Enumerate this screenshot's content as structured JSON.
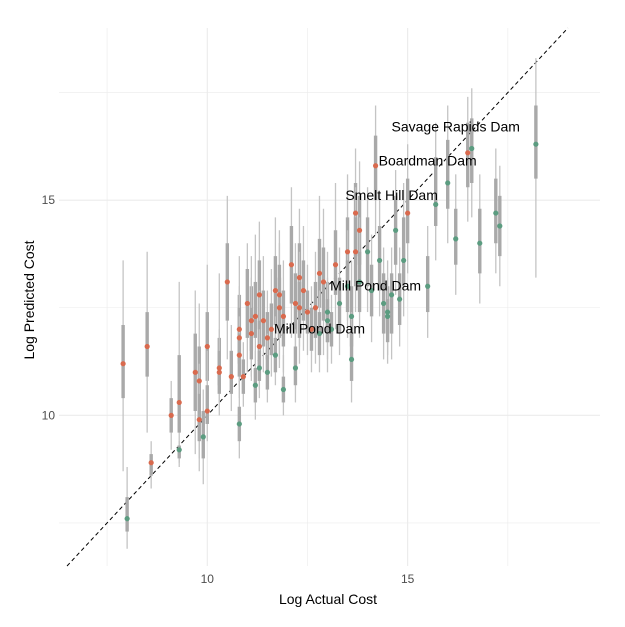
{
  "chart_data": {
    "type": "scatter",
    "title": "",
    "xlabel": "Log Actual Cost",
    "ylabel": "Log Predicted Cost",
    "xlim": [
      6.3,
      19.8
    ],
    "ylim": [
      6.5,
      19.0
    ],
    "x_ticks": [
      10,
      15
    ],
    "y_ticks": [
      10,
      15
    ],
    "grid": true,
    "legend": "none",
    "reference_line": {
      "style": "dashed",
      "slope": 1,
      "intercept": 0,
      "color": "#000000"
    },
    "colors": {
      "over_predicted": "#d96a4e",
      "under_predicted": "#5b9c80",
      "interval_outer": "#c4c4c4",
      "interval_inner": "#a9a9a9",
      "grid": "#ebebeb"
    },
    "annotations": [
      {
        "label": "Savage Rapids Dam",
        "x": 16.2,
        "y": 16.6
      },
      {
        "label": "Boardman Dam",
        "x": 15.5,
        "y": 15.8
      },
      {
        "label": "Smelt Hill Dam",
        "x": 14.6,
        "y": 15.0
      },
      {
        "label": "Mill Pond Dam",
        "x": 14.2,
        "y": 12.9
      },
      {
        "label": "Mill Pond Dam",
        "x": 12.8,
        "y": 11.9
      }
    ],
    "points": [
      {
        "x": 7.9,
        "y": 11.2,
        "g": "over",
        "lo": 8.7,
        "hi": 13.6,
        "ilo": 10.4,
        "ihi": 12.1
      },
      {
        "x": 8.0,
        "y": 7.6,
        "g": "under",
        "lo": 6.9,
        "hi": 8.8,
        "ilo": 7.3,
        "ihi": 8.1
      },
      {
        "x": 8.5,
        "y": 11.6,
        "g": "over",
        "lo": 9.6,
        "hi": 13.8,
        "ilo": 10.9,
        "ihi": 12.4
      },
      {
        "x": 8.6,
        "y": 8.9,
        "g": "over",
        "lo": 8.3,
        "hi": 9.4,
        "ilo": 8.6,
        "ihi": 9.1
      },
      {
        "x": 9.1,
        "y": 10.0,
        "g": "over",
        "lo": 9.2,
        "hi": 10.8,
        "ilo": 9.6,
        "ihi": 10.4
      },
      {
        "x": 9.3,
        "y": 10.3,
        "g": "over",
        "lo": 8.8,
        "hi": 13.1,
        "ilo": 9.6,
        "ihi": 11.4
      },
      {
        "x": 9.3,
        "y": 9.2,
        "g": "under",
        "lo": 8.9,
        "hi": 9.4,
        "ilo": 9.0,
        "ihi": 9.3
      },
      {
        "x": 9.7,
        "y": 11.0,
        "g": "over",
        "lo": 9.1,
        "hi": 12.9,
        "ilo": 10.1,
        "ihi": 11.9
      },
      {
        "x": 9.8,
        "y": 10.8,
        "g": "over",
        "lo": 8.7,
        "hi": 12.6,
        "ilo": 9.8,
        "ihi": 11.6
      },
      {
        "x": 9.8,
        "y": 9.9,
        "g": "over",
        "lo": 9.0,
        "hi": 11.2,
        "ilo": 9.4,
        "ihi": 10.5
      },
      {
        "x": 9.9,
        "y": 9.5,
        "g": "under",
        "lo": 8.4,
        "hi": 10.6,
        "ilo": 9.0,
        "ihi": 10.1
      },
      {
        "x": 10.0,
        "y": 11.6,
        "g": "over",
        "lo": 10.0,
        "hi": 13.5,
        "ilo": 10.8,
        "ihi": 12.4
      },
      {
        "x": 10.0,
        "y": 10.1,
        "g": "over",
        "lo": 9.4,
        "hi": 11.5,
        "ilo": 9.8,
        "ihi": 10.7
      },
      {
        "x": 10.3,
        "y": 11.1,
        "g": "over",
        "lo": 10.3,
        "hi": 13.3,
        "ilo": 10.7,
        "ihi": 11.8
      },
      {
        "x": 10.3,
        "y": 11.0,
        "g": "over",
        "lo": 10.0,
        "hi": 12.0,
        "ilo": 10.5,
        "ihi": 11.5
      },
      {
        "x": 10.5,
        "y": 13.1,
        "g": "over",
        "lo": 11.3,
        "hi": 15.1,
        "ilo": 12.2,
        "ihi": 14.0
      },
      {
        "x": 10.6,
        "y": 10.9,
        "g": "over",
        "lo": 10.1,
        "hi": 12.1,
        "ilo": 10.5,
        "ihi": 11.5
      },
      {
        "x": 10.8,
        "y": 12.0,
        "g": "over",
        "lo": 10.6,
        "hi": 13.7,
        "ilo": 11.3,
        "ihi": 12.8
      },
      {
        "x": 10.8,
        "y": 11.8,
        "g": "over",
        "lo": 10.7,
        "hi": 13.0,
        "ilo": 11.2,
        "ihi": 12.5
      },
      {
        "x": 10.8,
        "y": 11.4,
        "g": "over",
        "lo": 10.4,
        "hi": 12.3,
        "ilo": 10.9,
        "ihi": 11.9
      },
      {
        "x": 10.8,
        "y": 9.8,
        "g": "under",
        "lo": 9.0,
        "hi": 10.6,
        "ilo": 9.4,
        "ihi": 10.2
      },
      {
        "x": 10.9,
        "y": 10.9,
        "g": "over",
        "lo": 10.2,
        "hi": 11.7,
        "ilo": 10.5,
        "ihi": 11.3
      },
      {
        "x": 11.0,
        "y": 12.6,
        "g": "over",
        "lo": 11.0,
        "hi": 14.0,
        "ilo": 11.8,
        "ihi": 13.4
      },
      {
        "x": 11.1,
        "y": 12.2,
        "g": "over",
        "lo": 10.8,
        "hi": 13.7,
        "ilo": 11.5,
        "ihi": 13.0
      },
      {
        "x": 11.1,
        "y": 11.9,
        "g": "over",
        "lo": 10.9,
        "hi": 13.2,
        "ilo": 11.3,
        "ihi": 12.5
      },
      {
        "x": 11.2,
        "y": 12.3,
        "g": "over",
        "lo": 11.1,
        "hi": 14.2,
        "ilo": 11.8,
        "ihi": 13.1
      },
      {
        "x": 11.2,
        "y": 10.7,
        "g": "under",
        "lo": 9.9,
        "hi": 11.5,
        "ilo": 10.3,
        "ihi": 11.1
      },
      {
        "x": 11.3,
        "y": 12.8,
        "g": "over",
        "lo": 11.2,
        "hi": 14.5,
        "ilo": 12.0,
        "ihi": 13.6
      },
      {
        "x": 11.3,
        "y": 11.6,
        "g": "over",
        "lo": 10.6,
        "hi": 12.9,
        "ilo": 11.1,
        "ihi": 12.2
      },
      {
        "x": 11.3,
        "y": 11.1,
        "g": "under",
        "lo": 10.4,
        "hi": 12.0,
        "ilo": 10.8,
        "ihi": 11.5
      },
      {
        "x": 11.4,
        "y": 12.2,
        "g": "over",
        "lo": 11.0,
        "hi": 13.7,
        "ilo": 11.6,
        "ihi": 12.9
      },
      {
        "x": 11.5,
        "y": 11.8,
        "g": "over",
        "lo": 10.9,
        "hi": 12.9,
        "ilo": 11.3,
        "ihi": 12.4
      },
      {
        "x": 11.5,
        "y": 11.0,
        "g": "under",
        "lo": 10.3,
        "hi": 11.9,
        "ilo": 10.6,
        "ihi": 11.4
      },
      {
        "x": 11.6,
        "y": 12.0,
        "g": "over",
        "lo": 10.9,
        "hi": 13.4,
        "ilo": 11.4,
        "ihi": 12.6
      },
      {
        "x": 11.7,
        "y": 12.9,
        "g": "over",
        "lo": 11.4,
        "hi": 14.6,
        "ilo": 12.1,
        "ihi": 13.7
      },
      {
        "x": 11.7,
        "y": 11.4,
        "g": "under",
        "lo": 10.7,
        "hi": 12.3,
        "ilo": 11.0,
        "ihi": 11.8
      },
      {
        "x": 11.8,
        "y": 12.5,
        "g": "over",
        "lo": 11.1,
        "hi": 14.0,
        "ilo": 11.8,
        "ihi": 13.2
      },
      {
        "x": 11.8,
        "y": 12.8,
        "g": "over",
        "lo": 11.3,
        "hi": 14.3,
        "ilo": 12.0,
        "ihi": 13.5
      },
      {
        "x": 11.9,
        "y": 12.3,
        "g": "over",
        "lo": 11.0,
        "hi": 13.6,
        "ilo": 11.6,
        "ihi": 12.9
      },
      {
        "x": 11.9,
        "y": 10.6,
        "g": "under",
        "lo": 10.0,
        "hi": 11.4,
        "ilo": 10.3,
        "ihi": 10.9
      },
      {
        "x": 12.1,
        "y": 13.5,
        "g": "over",
        "lo": 11.8,
        "hi": 15.3,
        "ilo": 12.6,
        "ihi": 14.4
      },
      {
        "x": 12.2,
        "y": 12.6,
        "g": "over",
        "lo": 11.3,
        "hi": 14.0,
        "ilo": 11.9,
        "ihi": 13.3
      },
      {
        "x": 12.2,
        "y": 11.1,
        "g": "under",
        "lo": 10.3,
        "hi": 12.0,
        "ilo": 10.7,
        "ihi": 11.6
      },
      {
        "x": 12.3,
        "y": 13.2,
        "g": "over",
        "lo": 11.6,
        "hi": 14.8,
        "ilo": 12.4,
        "ihi": 14.0
      },
      {
        "x": 12.3,
        "y": 12.5,
        "g": "over",
        "lo": 11.2,
        "hi": 13.8,
        "ilo": 11.8,
        "ihi": 13.1
      },
      {
        "x": 12.4,
        "y": 12.9,
        "g": "over",
        "lo": 11.5,
        "hi": 14.4,
        "ilo": 12.2,
        "ihi": 13.6
      },
      {
        "x": 12.5,
        "y": 12.4,
        "g": "over",
        "lo": 11.4,
        "hi": 13.5,
        "ilo": 11.9,
        "ihi": 12.9
      },
      {
        "x": 12.6,
        "y": 12.0,
        "g": "over",
        "lo": 11.0,
        "hi": 13.0,
        "ilo": 11.5,
        "ihi": 12.5
      },
      {
        "x": 12.7,
        "y": 12.5,
        "g": "over",
        "lo": 11.2,
        "hi": 13.8,
        "ilo": 11.8,
        "ihi": 13.1
      },
      {
        "x": 12.8,
        "y": 13.3,
        "g": "over",
        "lo": 11.8,
        "hi": 15.1,
        "ilo": 12.5,
        "ihi": 14.1
      },
      {
        "x": 12.8,
        "y": 11.9,
        "g": "under",
        "lo": 11.0,
        "hi": 12.9,
        "ilo": 11.4,
        "ihi": 12.4
      },
      {
        "x": 12.9,
        "y": 13.1,
        "g": "over",
        "lo": 11.4,
        "hi": 14.8,
        "ilo": 12.2,
        "ihi": 13.9
      },
      {
        "x": 13.0,
        "y": 12.4,
        "g": "under",
        "lo": 11.0,
        "hi": 13.8,
        "ilo": 11.7,
        "ihi": 13.1
      },
      {
        "x": 13.0,
        "y": 12.2,
        "g": "under",
        "lo": 11.3,
        "hi": 13.2,
        "ilo": 11.7,
        "ihi": 12.7
      },
      {
        "x": 13.1,
        "y": 12.0,
        "g": "under",
        "lo": 11.2,
        "hi": 12.8,
        "ilo": 11.6,
        "ihi": 12.4
      },
      {
        "x": 13.2,
        "y": 13.5,
        "g": "over",
        "lo": 12.0,
        "hi": 15.4,
        "ilo": 12.8,
        "ihi": 14.3
      },
      {
        "x": 13.3,
        "y": 12.6,
        "g": "under",
        "lo": 11.4,
        "hi": 13.9,
        "ilo": 11.9,
        "ihi": 13.2
      },
      {
        "x": 13.5,
        "y": 13.8,
        "g": "over",
        "lo": 12.2,
        "hi": 15.6,
        "ilo": 13.0,
        "ihi": 14.6
      },
      {
        "x": 13.5,
        "y": 13.0,
        "g": "under",
        "lo": 11.8,
        "hi": 14.3,
        "ilo": 12.4,
        "ihi": 13.6
      },
      {
        "x": 13.6,
        "y": 12.3,
        "g": "under",
        "lo": 11.0,
        "hi": 13.6,
        "ilo": 11.6,
        "ihi": 13.0
      },
      {
        "x": 13.6,
        "y": 11.3,
        "g": "under",
        "lo": 10.3,
        "hi": 12.4,
        "ilo": 10.8,
        "ihi": 11.9
      },
      {
        "x": 13.7,
        "y": 14.7,
        "g": "over",
        "lo": 12.9,
        "hi": 16.2,
        "ilo": 13.7,
        "ihi": 15.4
      },
      {
        "x": 13.7,
        "y": 13.8,
        "g": "over",
        "lo": 12.4,
        "hi": 15.3,
        "ilo": 13.0,
        "ihi": 14.6
      },
      {
        "x": 13.8,
        "y": 14.3,
        "g": "over",
        "lo": 12.8,
        "hi": 15.9,
        "ilo": 13.5,
        "ihi": 15.1
      },
      {
        "x": 13.8,
        "y": 13.1,
        "g": "under",
        "lo": 11.8,
        "hi": 14.6,
        "ilo": 12.4,
        "ihi": 13.8
      },
      {
        "x": 14.0,
        "y": 13.8,
        "g": "under",
        "lo": 12.4,
        "hi": 15.3,
        "ilo": 13.0,
        "ihi": 14.6
      },
      {
        "x": 14.1,
        "y": 12.9,
        "g": "under",
        "lo": 11.7,
        "hi": 14.2,
        "ilo": 12.3,
        "ihi": 13.5
      },
      {
        "x": 14.2,
        "y": 15.8,
        "g": "over",
        "lo": 14.2,
        "hi": 17.2,
        "ilo": 15.0,
        "ihi": 16.5
      },
      {
        "x": 14.3,
        "y": 13.6,
        "g": "under",
        "lo": 12.3,
        "hi": 15.2,
        "ilo": 12.9,
        "ihi": 14.4
      },
      {
        "x": 14.4,
        "y": 12.6,
        "g": "under",
        "lo": 11.3,
        "hi": 13.9,
        "ilo": 11.9,
        "ihi": 13.3
      },
      {
        "x": 14.5,
        "y": 12.4,
        "g": "under",
        "lo": 11.4,
        "hi": 13.6,
        "ilo": 11.9,
        "ihi": 13.0
      },
      {
        "x": 14.5,
        "y": 12.3,
        "g": "under",
        "lo": 11.2,
        "hi": 13.2,
        "ilo": 11.7,
        "ihi": 12.7
      },
      {
        "x": 14.6,
        "y": 12.8,
        "g": "under",
        "lo": 11.3,
        "hi": 13.9,
        "ilo": 11.9,
        "ihi": 13.3
      },
      {
        "x": 14.7,
        "y": 14.3,
        "g": "under",
        "lo": 12.8,
        "hi": 15.7,
        "ilo": 13.5,
        "ihi": 15.1
      },
      {
        "x": 14.8,
        "y": 12.7,
        "g": "under",
        "lo": 11.6,
        "hi": 13.9,
        "ilo": 12.1,
        "ihi": 13.3
      },
      {
        "x": 14.9,
        "y": 13.6,
        "g": "under",
        "lo": 12.3,
        "hi": 15.4,
        "ilo": 13.0,
        "ihi": 14.6
      },
      {
        "x": 15.0,
        "y": 14.7,
        "g": "over",
        "lo": 13.3,
        "hi": 16.3,
        "ilo": 14.0,
        "ihi": 15.5
      },
      {
        "x": 15.5,
        "y": 13.0,
        "g": "under",
        "lo": 11.8,
        "hi": 14.4,
        "ilo": 12.4,
        "ihi": 13.7
      },
      {
        "x": 15.7,
        "y": 14.9,
        "g": "under",
        "lo": 13.6,
        "hi": 16.8,
        "ilo": 14.4,
        "ihi": 16.0
      },
      {
        "x": 16.0,
        "y": 15.4,
        "g": "under",
        "lo": 14.0,
        "hi": 17.2,
        "ilo": 14.8,
        "ihi": 16.4
      },
      {
        "x": 16.2,
        "y": 14.1,
        "g": "under",
        "lo": 12.8,
        "hi": 15.6,
        "ilo": 13.5,
        "ihi": 14.8
      },
      {
        "x": 16.5,
        "y": 16.1,
        "g": "over",
        "lo": 14.5,
        "hi": 17.4,
        "ilo": 15.3,
        "ihi": 16.8
      },
      {
        "x": 16.6,
        "y": 16.2,
        "g": "under",
        "lo": 14.6,
        "hi": 17.6,
        "ilo": 15.4,
        "ihi": 16.9
      },
      {
        "x": 16.8,
        "y": 14.0,
        "g": "under",
        "lo": 12.6,
        "hi": 15.6,
        "ilo": 13.3,
        "ihi": 14.8
      },
      {
        "x": 17.2,
        "y": 14.7,
        "g": "under",
        "lo": 13.3,
        "hi": 16.2,
        "ilo": 14.0,
        "ihi": 15.5
      },
      {
        "x": 17.3,
        "y": 14.4,
        "g": "under",
        "lo": 13.0,
        "hi": 15.8,
        "ilo": 13.7,
        "ihi": 15.1
      },
      {
        "x": 18.2,
        "y": 16.3,
        "g": "under",
        "lo": 13.2,
        "hi": 18.3,
        "ilo": 15.5,
        "ihi": 17.2
      }
    ]
  }
}
